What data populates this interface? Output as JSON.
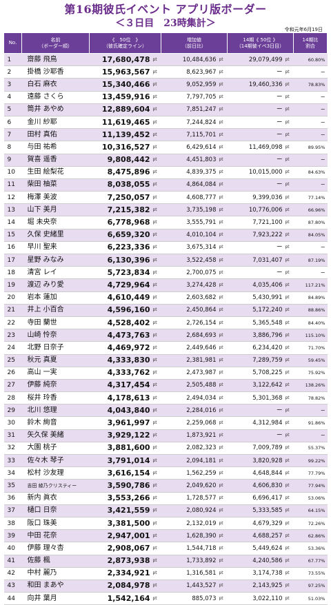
{
  "header": {
    "title": "第16期彼氏イベント アプリ版ボーダー",
    "subtitle": "＜３日目　23時集計＞",
    "date": "令和元年6月19日"
  },
  "columns": {
    "no": "No.",
    "name_1": "名前",
    "name_2": "（ボーダー順）",
    "score_1": "《　50位　》",
    "score_2": "（彼氏確定ライン）",
    "inc_1": "増加値",
    "inc_2": "（前日比）",
    "b14_1": "14期《 50位 》",
    "b14_2": "（14期彼イベ3日目）",
    "ratio_1": "14期比",
    "ratio_2": "割合",
    "unit": "pt"
  },
  "rows": [
    {
      "no": "1",
      "name": "齋藤 飛鳥",
      "score": "17,680,478",
      "inc": "10,484,636",
      "b14": "29,079,499",
      "ratio": "60.80%"
    },
    {
      "no": "2",
      "name": "掛橋 沙耶香",
      "score": "15,963,567",
      "inc": "8,623,967",
      "b14": "ー",
      "ratio": "ー"
    },
    {
      "no": "3",
      "name": "白石 麻衣",
      "score": "15,340,466",
      "inc": "9,052,959",
      "b14": "19,460,336",
      "ratio": "78.83%"
    },
    {
      "no": "4",
      "name": "遠藤 さくら",
      "score": "13,459,916",
      "inc": "7,797,705",
      "b14": "ー",
      "ratio": "ー"
    },
    {
      "no": "5",
      "name": "筒井 あやめ",
      "score": "12,889,604",
      "inc": "7,851,247",
      "b14": "ー",
      "ratio": "ー"
    },
    {
      "no": "6",
      "name": "金川 紗耶",
      "score": "11,619,465",
      "inc": "7,244,824",
      "b14": "ー",
      "ratio": "ー"
    },
    {
      "no": "7",
      "name": "田村 真佑",
      "score": "11,139,452",
      "inc": "7,115,701",
      "b14": "ー",
      "ratio": "ー"
    },
    {
      "no": "8",
      "name": "与田 祐希",
      "score": "10,316,527",
      "inc": "6,429,614",
      "b14": "11,469,098",
      "ratio": "89.95%"
    },
    {
      "no": "9",
      "name": "賀喜 遥香",
      "score": "9,808,442",
      "inc": "4,451,803",
      "b14": "ー",
      "ratio": "ー"
    },
    {
      "no": "10",
      "name": "生田 絵梨花",
      "score": "8,475,896",
      "inc": "4,839,375",
      "b14": "10,015,000",
      "ratio": "84.63%"
    },
    {
      "no": "11",
      "name": "柴田 柚菜",
      "score": "8,038,055",
      "inc": "4,864,084",
      "b14": "ー",
      "ratio": "ー"
    },
    {
      "no": "12",
      "name": "梅澤 美波",
      "score": "7,250,057",
      "inc": "4,608,777",
      "b14": "9,399,036",
      "ratio": "77.14%"
    },
    {
      "no": "13",
      "name": "山下 美月",
      "score": "7,215,382",
      "inc": "3,735,198",
      "b14": "10,776,006",
      "ratio": "66.96%"
    },
    {
      "no": "14",
      "name": "堀 未央奈",
      "score": "6,778,968",
      "inc": "3,555,791",
      "b14": "7,721,100",
      "ratio": "87.80%"
    },
    {
      "no": "15",
      "name": "久保 史緒里",
      "score": "6,659,320",
      "inc": "4,010,104",
      "b14": "7,923,222",
      "ratio": "84.05%"
    },
    {
      "no": "16",
      "name": "早川 聖来",
      "score": "6,223,336",
      "inc": "3,675,314",
      "b14": "ー",
      "ratio": "ー"
    },
    {
      "no": "17",
      "name": "星野 みなみ",
      "score": "6,130,396",
      "inc": "3,522,458",
      "b14": "7,031,407",
      "ratio": "87.19%"
    },
    {
      "no": "18",
      "name": "清宮 レイ",
      "score": "5,723,834",
      "inc": "2,700,075",
      "b14": "ー",
      "ratio": "ー"
    },
    {
      "no": "19",
      "name": "渡辺 みり愛",
      "score": "4,729,964",
      "inc": "3,274,428",
      "b14": "4,035,406",
      "ratio": "117.21%"
    },
    {
      "no": "20",
      "name": "岩本 蓮加",
      "score": "4,610,449",
      "inc": "2,603,682",
      "b14": "5,430,991",
      "ratio": "84.89%"
    },
    {
      "no": "21",
      "name": "井上 小百合",
      "score": "4,596,160",
      "inc": "2,450,864",
      "b14": "5,172,240",
      "ratio": "88.86%"
    },
    {
      "no": "22",
      "name": "寺田 蘭世",
      "score": "4,528,402",
      "inc": "2,726,154",
      "b14": "5,365,548",
      "ratio": "84.40%"
    },
    {
      "no": "23",
      "name": "山崎 怜奈",
      "score": "4,473,763",
      "inc": "2,684,693",
      "b14": "3,886,796",
      "ratio": "115.10%"
    },
    {
      "no": "24",
      "name": "北野 日奈子",
      "score": "4,469,972",
      "inc": "2,449,646",
      "b14": "6,234,420",
      "ratio": "71.70%"
    },
    {
      "no": "25",
      "name": "秋元 真夏",
      "score": "4,333,830",
      "inc": "2,381,981",
      "b14": "7,289,759",
      "ratio": "59.45%"
    },
    {
      "no": "26",
      "name": "高山 一実",
      "score": "4,333,762",
      "inc": "2,473,987",
      "b14": "5,708,225",
      "ratio": "75.92%"
    },
    {
      "no": "27",
      "name": "伊藤 純奈",
      "score": "4,317,454",
      "inc": "2,505,488",
      "b14": "3,122,642",
      "ratio": "138.26%"
    },
    {
      "no": "28",
      "name": "桜井 玲香",
      "score": "4,178,613",
      "inc": "2,494,034",
      "b14": "5,301,368",
      "ratio": "78.82%"
    },
    {
      "no": "29",
      "name": "北川 悠理",
      "score": "4,043,840",
      "inc": "2,284,016",
      "b14": "ー",
      "ratio": "ー"
    },
    {
      "no": "30",
      "name": "鈴木 絢音",
      "score": "3,961,997",
      "inc": "2,259,068",
      "b14": "4,312,984",
      "ratio": "91.86%"
    },
    {
      "no": "31",
      "name": "矢久保 美緒",
      "score": "3,929,122",
      "inc": "1,873,921",
      "b14": "ー",
      "ratio": "ー"
    },
    {
      "no": "32",
      "name": "大園 桃子",
      "score": "3,881,600",
      "inc": "2,082,323",
      "b14": "7,009,789",
      "ratio": "55.37%"
    },
    {
      "no": "33",
      "name": "佐々木 琴子",
      "score": "3,791,014",
      "inc": "2,094,181",
      "b14": "3,820,928",
      "ratio": "99.22%"
    },
    {
      "no": "34",
      "name": "松村 沙友理",
      "score": "3,616,154",
      "inc": "1,562,259",
      "b14": "4,648,844",
      "ratio": "77.79%"
    },
    {
      "no": "35",
      "name": "吉田 綾乃クリスティー",
      "score": "3,590,786",
      "inc": "2,049,620",
      "b14": "4,606,830",
      "ratio": "77.94%",
      "small": true
    },
    {
      "no": "36",
      "name": "新内 眞衣",
      "score": "3,553,266",
      "inc": "1,728,577",
      "b14": "6,696,417",
      "ratio": "53.06%"
    },
    {
      "no": "37",
      "name": "樋口 日奈",
      "score": "3,421,559",
      "inc": "2,080,924",
      "b14": "5,333,585",
      "ratio": "64.15%"
    },
    {
      "no": "38",
      "name": "阪口 珠美",
      "score": "3,381,500",
      "inc": "2,132,019",
      "b14": "4,679,329",
      "ratio": "72.26%"
    },
    {
      "no": "39",
      "name": "中田 花奈",
      "score": "2,947,001",
      "inc": "1,628,390",
      "b14": "4,688,257",
      "ratio": "62.86%"
    },
    {
      "no": "40",
      "name": "伊藤 理々杏",
      "score": "2,908,067",
      "inc": "1,544,718",
      "b14": "5,449,624",
      "ratio": "53.36%"
    },
    {
      "no": "41",
      "name": "佐藤 楓",
      "score": "2,873,938",
      "inc": "1,733,892",
      "b14": "4,240,586",
      "ratio": "67.77%"
    },
    {
      "no": "42",
      "name": "中村 麗乃",
      "score": "2,334,921",
      "inc": "1,316,581",
      "b14": "3,174,738",
      "ratio": "73.55%"
    },
    {
      "no": "43",
      "name": "和田 まあや",
      "score": "2,084,978",
      "inc": "1,443,527",
      "b14": "2,143,925",
      "ratio": "97.25%"
    },
    {
      "no": "44",
      "name": "向井 葉月",
      "score": "1,542,164",
      "inc": "885,073",
      "b14": "3,022,110",
      "ratio": "51.03%"
    }
  ]
}
